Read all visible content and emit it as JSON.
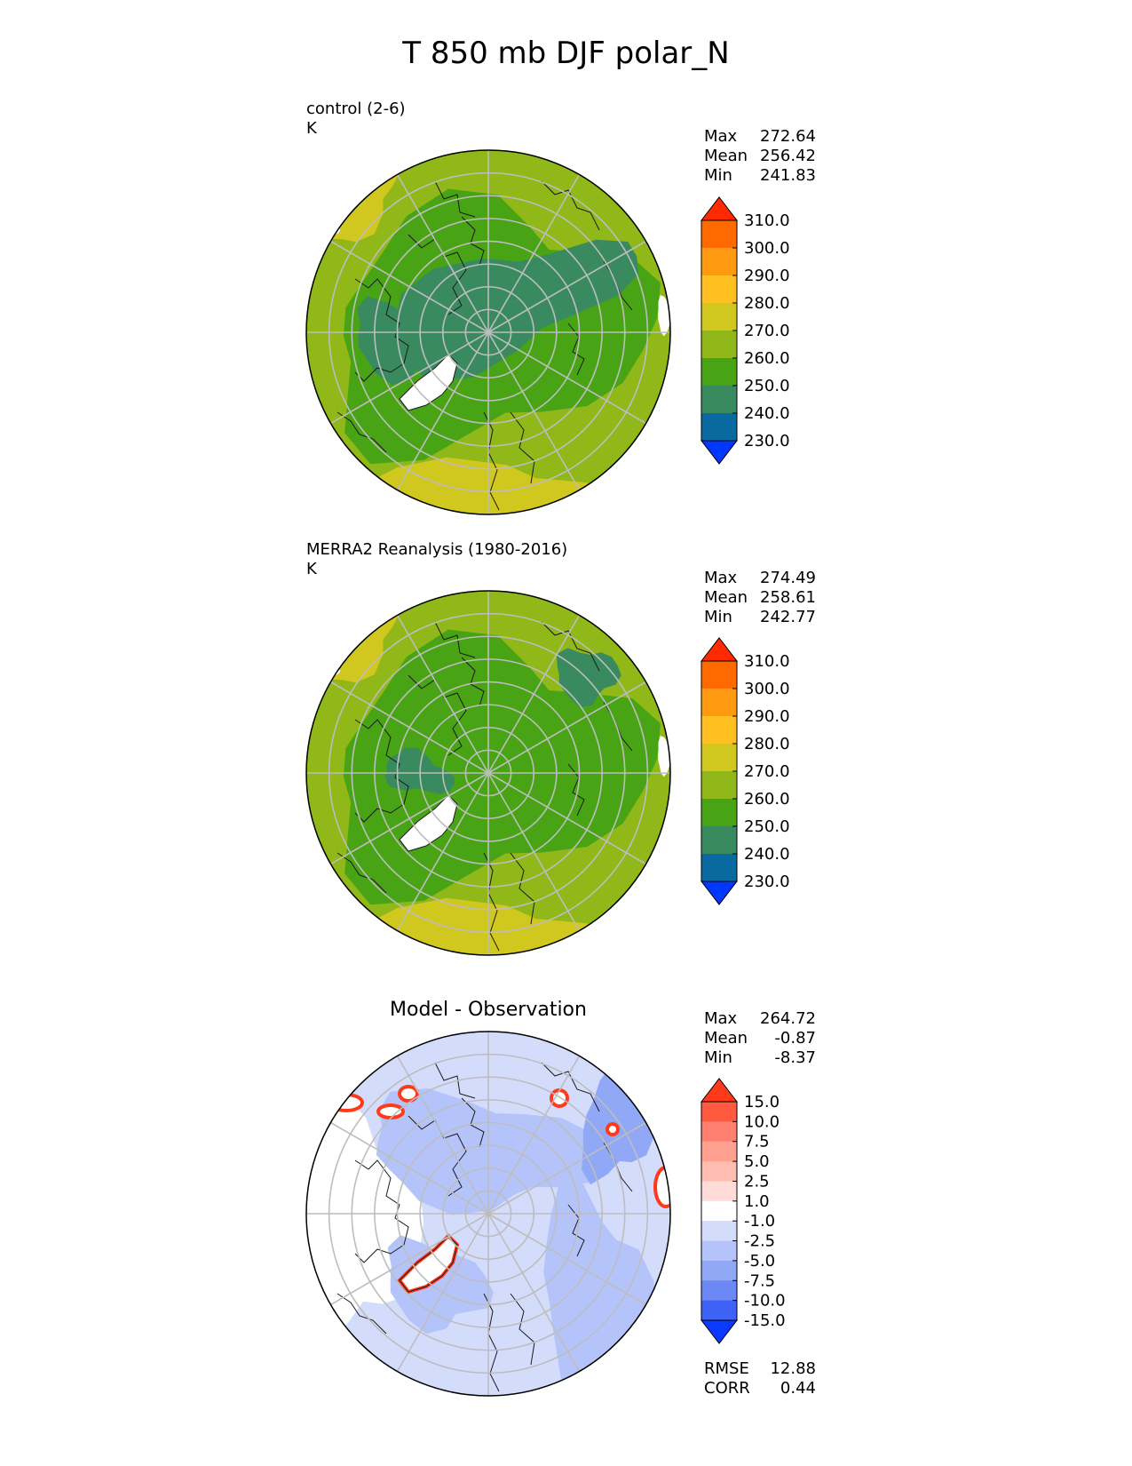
{
  "title": "T 850 mb DJF polar_N",
  "panels": [
    {
      "label": "control (2-6)",
      "units": "K",
      "stats": [
        {
          "name": "Max",
          "value": "272.64"
        },
        {
          "name": "Mean",
          "value": "256.42"
        },
        {
          "name": "Min",
          "value": "241.83"
        }
      ]
    },
    {
      "label": "MERRA2 Reanalysis (1980-2016)",
      "units": "K",
      "stats": [
        {
          "name": "Max",
          "value": "274.49"
        },
        {
          "name": "Mean",
          "value": "258.61"
        },
        {
          "name": "Min",
          "value": "242.77"
        }
      ]
    },
    {
      "heading": "Model - Observation",
      "stats": [
        {
          "name": "Max",
          "value": "264.72"
        },
        {
          "name": "Mean",
          "value": "-0.87"
        },
        {
          "name": "Min",
          "value": "-8.37"
        }
      ],
      "metrics": [
        {
          "name": "RMSE",
          "value": "12.88"
        },
        {
          "name": "CORR",
          "value": "0.44"
        }
      ]
    }
  ],
  "chart_data": [
    {
      "type": "heatmap",
      "projection": "north polar stereographic",
      "title": "control (2-6)",
      "units": "K",
      "colorbar": {
        "ticks": [
          "310.0",
          "300.0",
          "290.0",
          "280.0",
          "270.0",
          "260.0",
          "250.0",
          "240.0",
          "230.0"
        ],
        "colors": [
          "#ff2a00",
          "#ff6a00",
          "#ff9a10",
          "#ffc020",
          "#d0c81e",
          "#90b818",
          "#48a414",
          "#3a8a60",
          "#0a6aa0",
          "#0038ff"
        ],
        "extend": "both"
      },
      "stats": {
        "max": 272.64,
        "mean": 256.42,
        "min": 241.83
      }
    },
    {
      "type": "heatmap",
      "projection": "north polar stereographic",
      "title": "MERRA2 Reanalysis (1980-2016)",
      "units": "K",
      "colorbar": {
        "ticks": [
          "310.0",
          "300.0",
          "290.0",
          "280.0",
          "270.0",
          "260.0",
          "250.0",
          "240.0",
          "230.0"
        ],
        "colors": [
          "#ff2a00",
          "#ff6a00",
          "#ff9a10",
          "#ffc020",
          "#d0c81e",
          "#90b818",
          "#48a414",
          "#3a8a60",
          "#0a6aa0",
          "#0038ff"
        ],
        "extend": "both"
      },
      "stats": {
        "max": 274.49,
        "mean": 258.61,
        "min": 242.77
      }
    },
    {
      "type": "heatmap",
      "projection": "north polar stereographic",
      "title": "Model - Observation",
      "colorbar": {
        "ticks": [
          "15.0",
          "10.0",
          "7.5",
          "5.0",
          "2.5",
          "1.0",
          "-1.0",
          "-2.5",
          "-5.0",
          "-7.5",
          "-10.0",
          "-15.0"
        ],
        "colors": [
          "#ff3a1a",
          "#ff5a40",
          "#ff8070",
          "#ffa090",
          "#ffbcb0",
          "#ffdcd8",
          "#ffffff",
          "#d4dcfc",
          "#b4c4fa",
          "#90a8f6",
          "#6c88f4",
          "#3e62f6",
          "#0a3aff"
        ],
        "extend": "both"
      },
      "stats": {
        "max": 264.72,
        "mean": -0.87,
        "min": -8.37
      },
      "rmse": 12.88,
      "corr": 0.44
    }
  ]
}
